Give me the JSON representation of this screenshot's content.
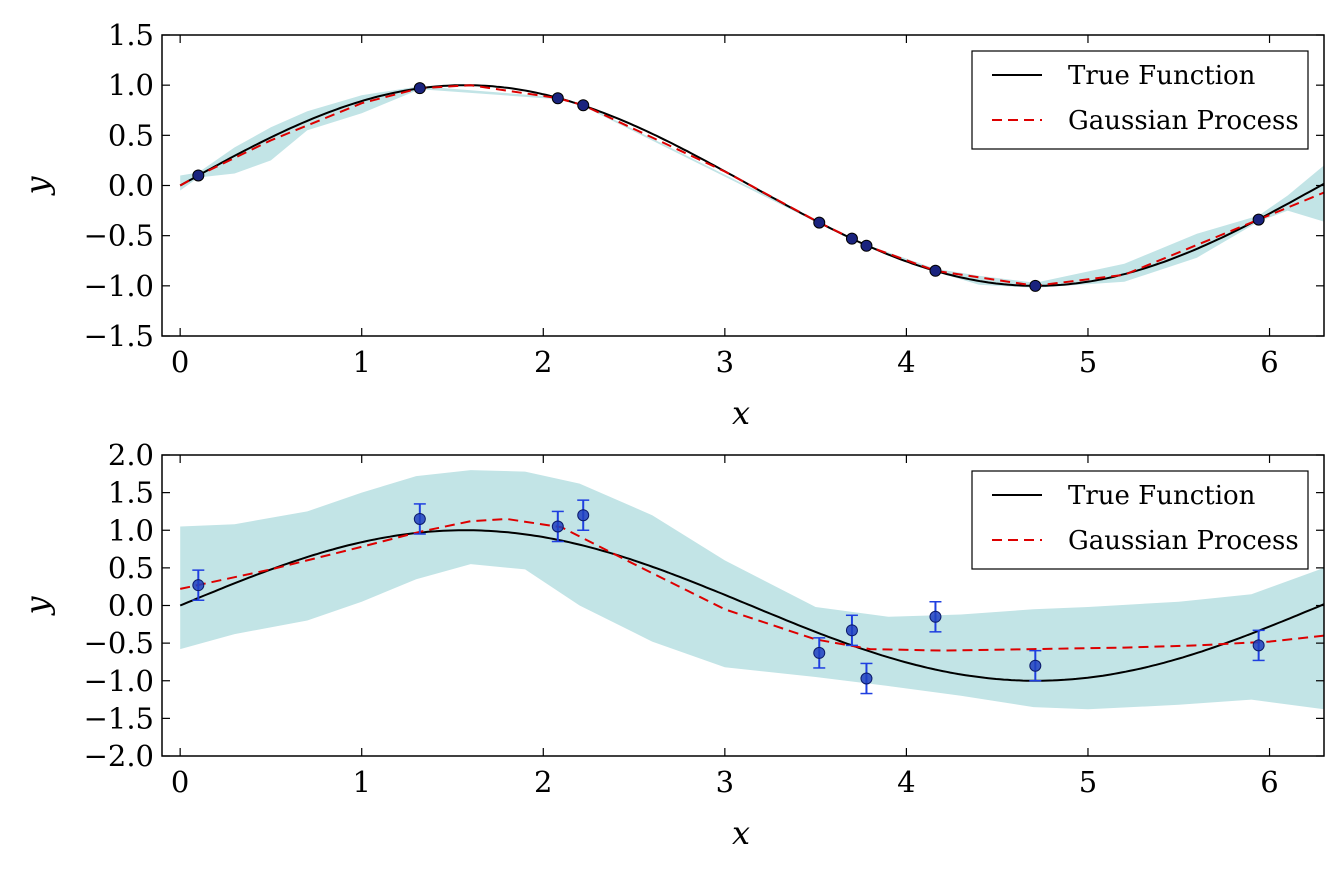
{
  "chart_data": [
    {
      "type": "line",
      "xlabel": "x",
      "ylabel": "y",
      "xlim": [
        -0.1,
        6.3
      ],
      "ylim": [
        -1.5,
        1.5
      ],
      "xticks": [
        0,
        1,
        2,
        3,
        4,
        5,
        6
      ],
      "yticks": [
        1.5,
        1.0,
        0.5,
        0.0,
        -0.5,
        -1.0,
        -1.5
      ],
      "xtick_labels": [
        "0",
        "1",
        "2",
        "3",
        "4",
        "5",
        "6"
      ],
      "ytick_labels": [
        "1.5",
        "1.0",
        "0.5",
        "0.0",
        "−0.5",
        "−1.0",
        "−1.5"
      ],
      "legend": {
        "position": "top-right",
        "entries": [
          "True Function",
          "Gaussian Process"
        ]
      },
      "series": [
        {
          "name": "True Function",
          "style": "solid",
          "color": "#000000",
          "function": "sin"
        },
        {
          "name": "Gaussian Process",
          "style": "dashed",
          "color": "#dd0000",
          "x": [
            0,
            0.1,
            0.5,
            1.0,
            1.32,
            1.6,
            2.08,
            2.22,
            3.0,
            3.52,
            3.7,
            3.78,
            4.16,
            4.71,
            5.2,
            5.94,
            6.3
          ],
          "y": [
            0.0,
            0.1,
            0.45,
            0.82,
            0.97,
            1.0,
            0.87,
            0.8,
            0.14,
            -0.37,
            -0.53,
            -0.6,
            -0.85,
            -1.0,
            -0.89,
            -0.34,
            -0.07
          ]
        }
      ],
      "band": {
        "x": [
          0,
          0.1,
          0.3,
          0.5,
          0.7,
          1.0,
          1.32,
          2.08,
          2.22,
          3.52,
          3.7,
          3.78,
          4.16,
          4.4,
          4.71,
          5.2,
          5.6,
          5.94,
          6.1,
          6.3
        ],
        "upper": [
          0.1,
          0.13,
          0.38,
          0.58,
          0.74,
          0.9,
          0.99,
          0.88,
          0.81,
          -0.36,
          -0.52,
          -0.59,
          -0.83,
          -0.9,
          -0.97,
          -0.78,
          -0.48,
          -0.3,
          -0.1,
          0.2
        ],
        "lower": [
          -0.05,
          0.08,
          0.12,
          0.25,
          0.55,
          0.72,
          0.96,
          0.86,
          0.79,
          -0.38,
          -0.53,
          -0.61,
          -0.86,
          -0.99,
          -1.02,
          -0.96,
          -0.72,
          -0.36,
          -0.25,
          -0.36
        ],
        "color": "#c2e4e6"
      },
      "points": {
        "x": [
          0.1,
          1.32,
          2.08,
          2.22,
          3.52,
          3.7,
          3.78,
          4.16,
          4.71,
          5.94
        ],
        "y": [
          0.1,
          0.97,
          0.87,
          0.8,
          -0.37,
          -0.53,
          -0.6,
          -0.85,
          -1.0,
          -0.34
        ],
        "color": "#1a237e"
      }
    },
    {
      "type": "line",
      "xlabel": "x",
      "ylabel": "y",
      "xlim": [
        -0.1,
        6.3
      ],
      "ylim": [
        -2.0,
        2.0
      ],
      "xticks": [
        0,
        1,
        2,
        3,
        4,
        5,
        6
      ],
      "yticks": [
        2.0,
        1.5,
        1.0,
        0.5,
        0.0,
        -0.5,
        -1.0,
        -1.5,
        -2.0
      ],
      "xtick_labels": [
        "0",
        "1",
        "2",
        "3",
        "4",
        "5",
        "6"
      ],
      "ytick_labels": [
        "2.0",
        "1.5",
        "1.0",
        "0.5",
        "0.0",
        "−0.5",
        "−1.0",
        "−1.5",
        "−2.0"
      ],
      "legend": {
        "position": "top-right",
        "entries": [
          "True Function",
          "Gaussian Process"
        ]
      },
      "series": [
        {
          "name": "True Function",
          "style": "solid",
          "color": "#000000",
          "function": "sin"
        },
        {
          "name": "Gaussian Process",
          "style": "dashed",
          "color": "#dd0000",
          "x": [
            0,
            0.5,
            1.0,
            1.32,
            1.6,
            1.8,
            2.1,
            2.5,
            3.0,
            3.5,
            3.8,
            4.2,
            4.7,
            5.2,
            5.6,
            6.0,
            6.3
          ],
          "y": [
            0.22,
            0.48,
            0.78,
            0.98,
            1.12,
            1.15,
            1.04,
            0.55,
            -0.05,
            -0.45,
            -0.58,
            -0.6,
            -0.58,
            -0.56,
            -0.53,
            -0.48,
            -0.4
          ]
        }
      ],
      "band": {
        "x": [
          0,
          0.3,
          0.7,
          1.0,
          1.3,
          1.6,
          1.9,
          2.2,
          2.6,
          3.0,
          3.5,
          3.9,
          4.3,
          4.7,
          5.0,
          5.5,
          5.9,
          6.3
        ],
        "upper": [
          1.05,
          1.08,
          1.25,
          1.5,
          1.72,
          1.8,
          1.78,
          1.62,
          1.2,
          0.6,
          -0.02,
          -0.15,
          -0.12,
          -0.05,
          -0.02,
          0.05,
          0.15,
          0.5
        ],
        "lower": [
          -0.58,
          -0.38,
          -0.2,
          0.05,
          0.35,
          0.55,
          0.48,
          0.0,
          -0.48,
          -0.82,
          -0.95,
          -1.07,
          -1.2,
          -1.35,
          -1.38,
          -1.32,
          -1.25,
          -1.38
        ],
        "color": "#c2e4e6"
      },
      "points": {
        "x": [
          0.1,
          1.32,
          2.08,
          2.22,
          3.52,
          3.7,
          3.78,
          4.16,
          4.71,
          5.94
        ],
        "y": [
          0.27,
          1.15,
          1.05,
          1.2,
          -0.63,
          -0.33,
          -0.97,
          -0.15,
          -0.8,
          -0.53
        ],
        "err": [
          0.2,
          0.2,
          0.2,
          0.2,
          0.2,
          0.2,
          0.2,
          0.2,
          0.2,
          0.2
        ],
        "color": "#1f3fbf"
      }
    }
  ]
}
